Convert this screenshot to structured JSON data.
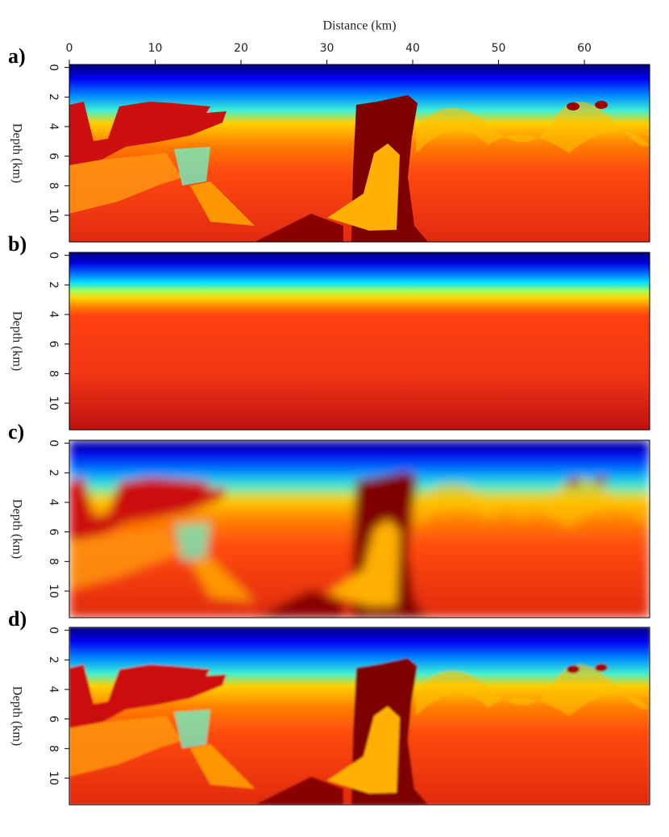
{
  "chart_data": [
    {
      "type": "heatmap",
      "panel_label": "a)",
      "xlabel": "Distance (km)",
      "ylabel": "Depth (km)",
      "xlim": [
        0,
        67.6
      ],
      "xticks": [
        0,
        10,
        20,
        30,
        40,
        50,
        60
      ],
      "ylim": [
        -0.2,
        11.8
      ],
      "yticks": [
        0,
        2,
        4,
        6,
        8,
        10
      ]
    },
    {
      "type": "heatmap",
      "panel_label": "b)",
      "ylabel": "Depth (km)",
      "ylim": [
        -0.2,
        11.8
      ],
      "yticks": [
        0,
        2,
        4,
        6,
        8,
        10
      ]
    },
    {
      "type": "heatmap",
      "panel_label": "c)",
      "ylabel": "Depth (km)",
      "ylim": [
        -0.2,
        11.8
      ],
      "yticks": [
        0,
        2,
        4,
        6,
        8,
        10
      ]
    },
    {
      "type": "heatmap",
      "panel_label": "d)",
      "ylabel": "Depth (km)",
      "ylim": [
        -0.2,
        11.8
      ],
      "yticks": [
        0,
        2,
        4,
        6,
        8,
        10
      ]
    }
  ]
}
